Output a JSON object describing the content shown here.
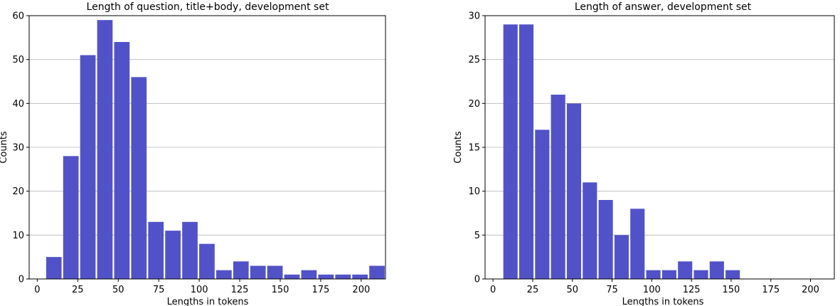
{
  "chart_data": [
    {
      "type": "bar",
      "title": "Length of question, title+body, development set",
      "xlabel": "Lengths in tokens",
      "ylabel": "Counts",
      "xlim": [
        -5,
        215
      ],
      "ylim": [
        0,
        60
      ],
      "xticks": [
        0,
        25,
        50,
        75,
        100,
        125,
        150,
        175,
        200
      ],
      "yticks": [
        0,
        10,
        20,
        30,
        40,
        50,
        60
      ],
      "grid": "horizontal",
      "bar_color": "#5252c8",
      "bin_width": 10.5,
      "bin_edges": [
        5,
        15.5,
        26,
        36.5,
        47,
        57.5,
        68,
        78.5,
        89,
        99.5,
        110,
        120.5,
        131,
        141.5,
        152,
        162.5,
        173,
        183.5,
        194,
        204.5
      ],
      "values": [
        5,
        28,
        51,
        59,
        54,
        46,
        13,
        11,
        13,
        8,
        2,
        4,
        3,
        3,
        1,
        2,
        1,
        1,
        1,
        3
      ]
    },
    {
      "type": "bar",
      "title": "Length of answer, development set",
      "xlabel": "Lengths in tokens",
      "ylabel": "Counts",
      "xlim": [
        -5,
        215
      ],
      "ylim": [
        0,
        30
      ],
      "xticks": [
        0,
        25,
        50,
        75,
        100,
        125,
        150,
        175,
        200
      ],
      "yticks": [
        0,
        5,
        10,
        15,
        20,
        25,
        30
      ],
      "grid": "horizontal",
      "bar_color": "#5252c8",
      "bin_width": 10,
      "bin_edges": [
        6,
        16,
        26,
        36,
        46,
        56,
        66,
        76,
        86,
        96,
        106,
        116,
        126,
        136,
        146,
        156,
        166,
        176,
        186,
        196
      ],
      "values": [
        29,
        29,
        17,
        21,
        20,
        11,
        9,
        5,
        8,
        1,
        1,
        2,
        1,
        2,
        1,
        0,
        0,
        0,
        0,
        0
      ]
    }
  ]
}
